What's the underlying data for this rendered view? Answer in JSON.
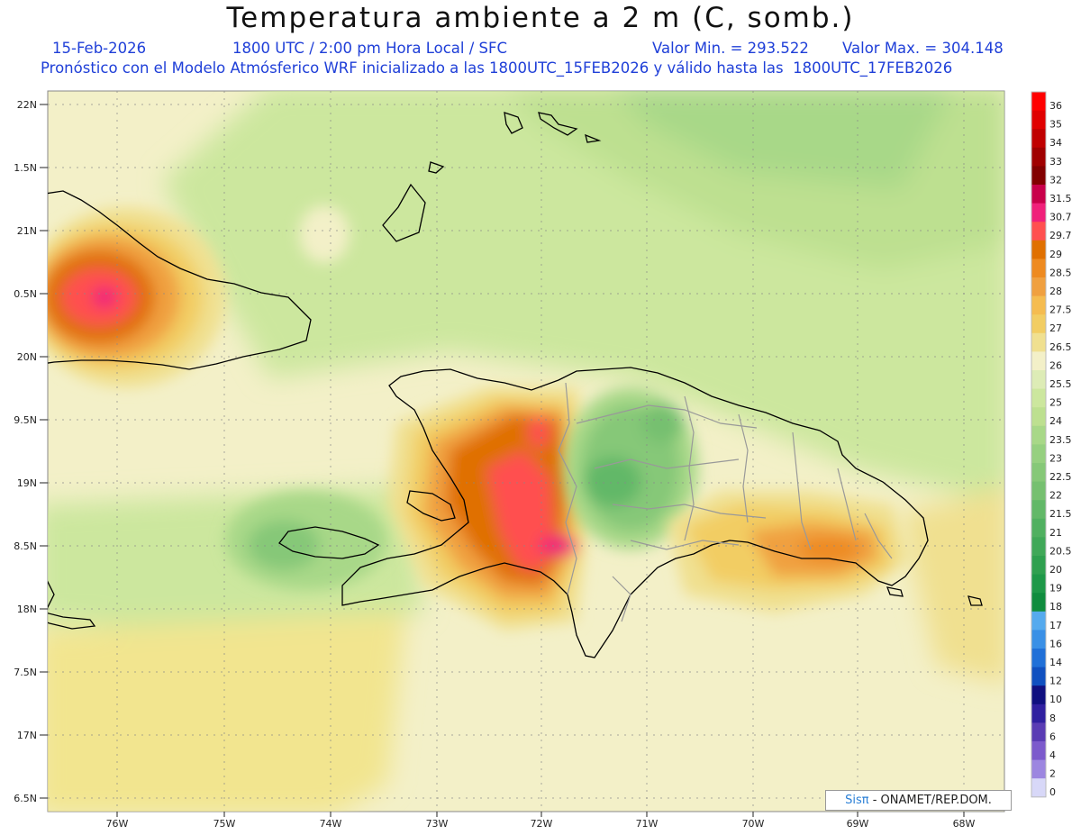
{
  "header": {
    "title": "Temperatura ambiente a 2 m (C, somb.)",
    "date": "15-Feb-2026",
    "time": "1800 UTC / 2:00 pm Hora Local / SFC",
    "min": "Valor Min. = 293.522",
    "max": "Valor Max. = 304.148",
    "model_line": "Pronóstico con el Modelo Atmósferico WRF inicializado a las 1800UTC_15FEB2026 y válido hasta las  1800UTC_17FEB2026"
  },
  "axes": {
    "lat_labels": [
      "22N",
      "1.5N",
      "21N",
      "0.5N",
      "20N",
      "9.5N",
      "19N",
      "8.5N",
      "18N",
      "7.5N",
      "17N",
      "6.5N"
    ],
    "lon_labels": [
      "76W",
      "75W",
      "74W",
      "73W",
      "72W",
      "71W",
      "70W",
      "69W",
      "68W"
    ]
  },
  "colorbar": {
    "labels": [
      "36",
      "35",
      "34",
      "33",
      "32",
      "31.5",
      "30.7",
      "29.7",
      "29",
      "28.5",
      "28",
      "27.5",
      "27",
      "26.5",
      "26",
      "25.5",
      "25",
      "24",
      "23.5",
      "23",
      "22.5",
      "22",
      "21.5",
      "21",
      "20.5",
      "20",
      "19",
      "18",
      "17",
      "16",
      "14",
      "12",
      "10",
      "8",
      "6",
      "4",
      "2",
      "0"
    ],
    "colors": [
      "#ff0000",
      "#e00000",
      "#c00000",
      "#a00000",
      "#820000",
      "#c8004a",
      "#f0207a",
      "#ff5050",
      "#e07000",
      "#ee8a20",
      "#f0a040",
      "#f5bc50",
      "#f2cd63",
      "#f0e090",
      "#f3f0c8",
      "#ddecb6",
      "#cce79e",
      "#bde090",
      "#a8d888",
      "#96d080",
      "#86c878",
      "#76c070",
      "#62b868",
      "#50b060",
      "#40a858",
      "#2fa04f",
      "#1e9848",
      "#108c3e",
      "#55aaee",
      "#3a90e6",
      "#2070d8",
      "#1050c0",
      "#101080",
      "#3020a0",
      "#5a3cb4",
      "#7c5acc",
      "#9c86e0",
      "#d8d8f8"
    ]
  },
  "credit": {
    "brand": "Sisπ",
    "org": " - ONAMET/REP.DOM."
  }
}
